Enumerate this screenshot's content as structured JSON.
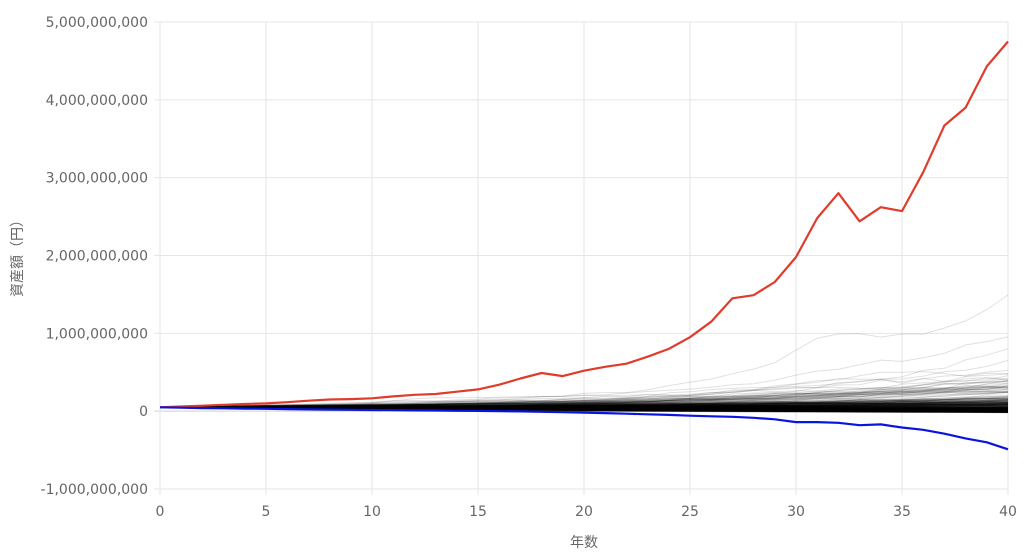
{
  "chart_data": {
    "type": "line",
    "xlabel": "年数",
    "ylabel": "資産額（円）",
    "xlim": [
      0,
      40
    ],
    "ylim": [
      -1000000000,
      5000000000
    ],
    "x_ticks": [
      "0",
      "5",
      "10",
      "15",
      "20",
      "25",
      "30",
      "35",
      "40"
    ],
    "y_ticks": [
      "5,000,000,000",
      "4,000,000,000",
      "3,000,000,000",
      "2,000,000,000",
      "1,000,000,000",
      "0",
      "-1,000,000,000"
    ],
    "grid": true,
    "colors": {
      "max": "#e03c2c",
      "min": "#0a14e0",
      "simulations": "#000000",
      "grid": "#e6e6e6",
      "text": "#666666"
    },
    "simulation_count": 400,
    "series": [
      {
        "role": "max",
        "x": [
          0,
          1,
          2,
          3,
          4,
          5,
          6,
          7,
          8,
          9,
          10,
          11,
          12,
          13,
          14,
          15,
          16,
          17,
          18,
          19,
          20,
          21,
          22,
          23,
          24,
          25,
          26,
          27,
          28,
          29,
          30,
          31,
          32,
          33,
          34,
          35,
          36,
          37,
          38,
          39,
          40
        ],
        "values": [
          50000000,
          60000000,
          70000000,
          82000000,
          92000000,
          100000000,
          115000000,
          135000000,
          150000000,
          155000000,
          165000000,
          190000000,
          210000000,
          220000000,
          250000000,
          280000000,
          340000000,
          420000000,
          490000000,
          450000000,
          520000000,
          570000000,
          610000000,
          700000000,
          800000000,
          950000000,
          1150000000,
          1450000000,
          1490000000,
          1660000000,
          1980000000,
          2480000000,
          2800000000,
          2440000000,
          2620000000,
          2570000000,
          3070000000,
          3670000000,
          3900000000,
          4430000000,
          4750000000
        ]
      },
      {
        "role": "min",
        "x": [
          0,
          1,
          2,
          3,
          4,
          5,
          6,
          7,
          8,
          9,
          10,
          11,
          12,
          13,
          14,
          15,
          16,
          17,
          18,
          19,
          20,
          21,
          22,
          23,
          24,
          25,
          26,
          27,
          28,
          29,
          30,
          31,
          32,
          33,
          34,
          35,
          36,
          37,
          38,
          39,
          40
        ],
        "values": [
          50000000,
          45000000,
          40000000,
          37000000,
          33000000,
          30000000,
          26000000,
          23000000,
          20000000,
          17000000,
          15000000,
          12000000,
          10000000,
          8000000,
          5000000,
          3000000,
          0,
          -3000000,
          -8000000,
          -13000000,
          -18000000,
          -25000000,
          -33000000,
          -40000000,
          -48000000,
          -58000000,
          -66000000,
          -73000000,
          -85000000,
          -105000000,
          -140000000,
          -140000000,
          -150000000,
          -180000000,
          -170000000,
          -210000000,
          -240000000,
          -290000000,
          -350000000,
          -400000000,
          -490000000
        ]
      }
    ]
  }
}
